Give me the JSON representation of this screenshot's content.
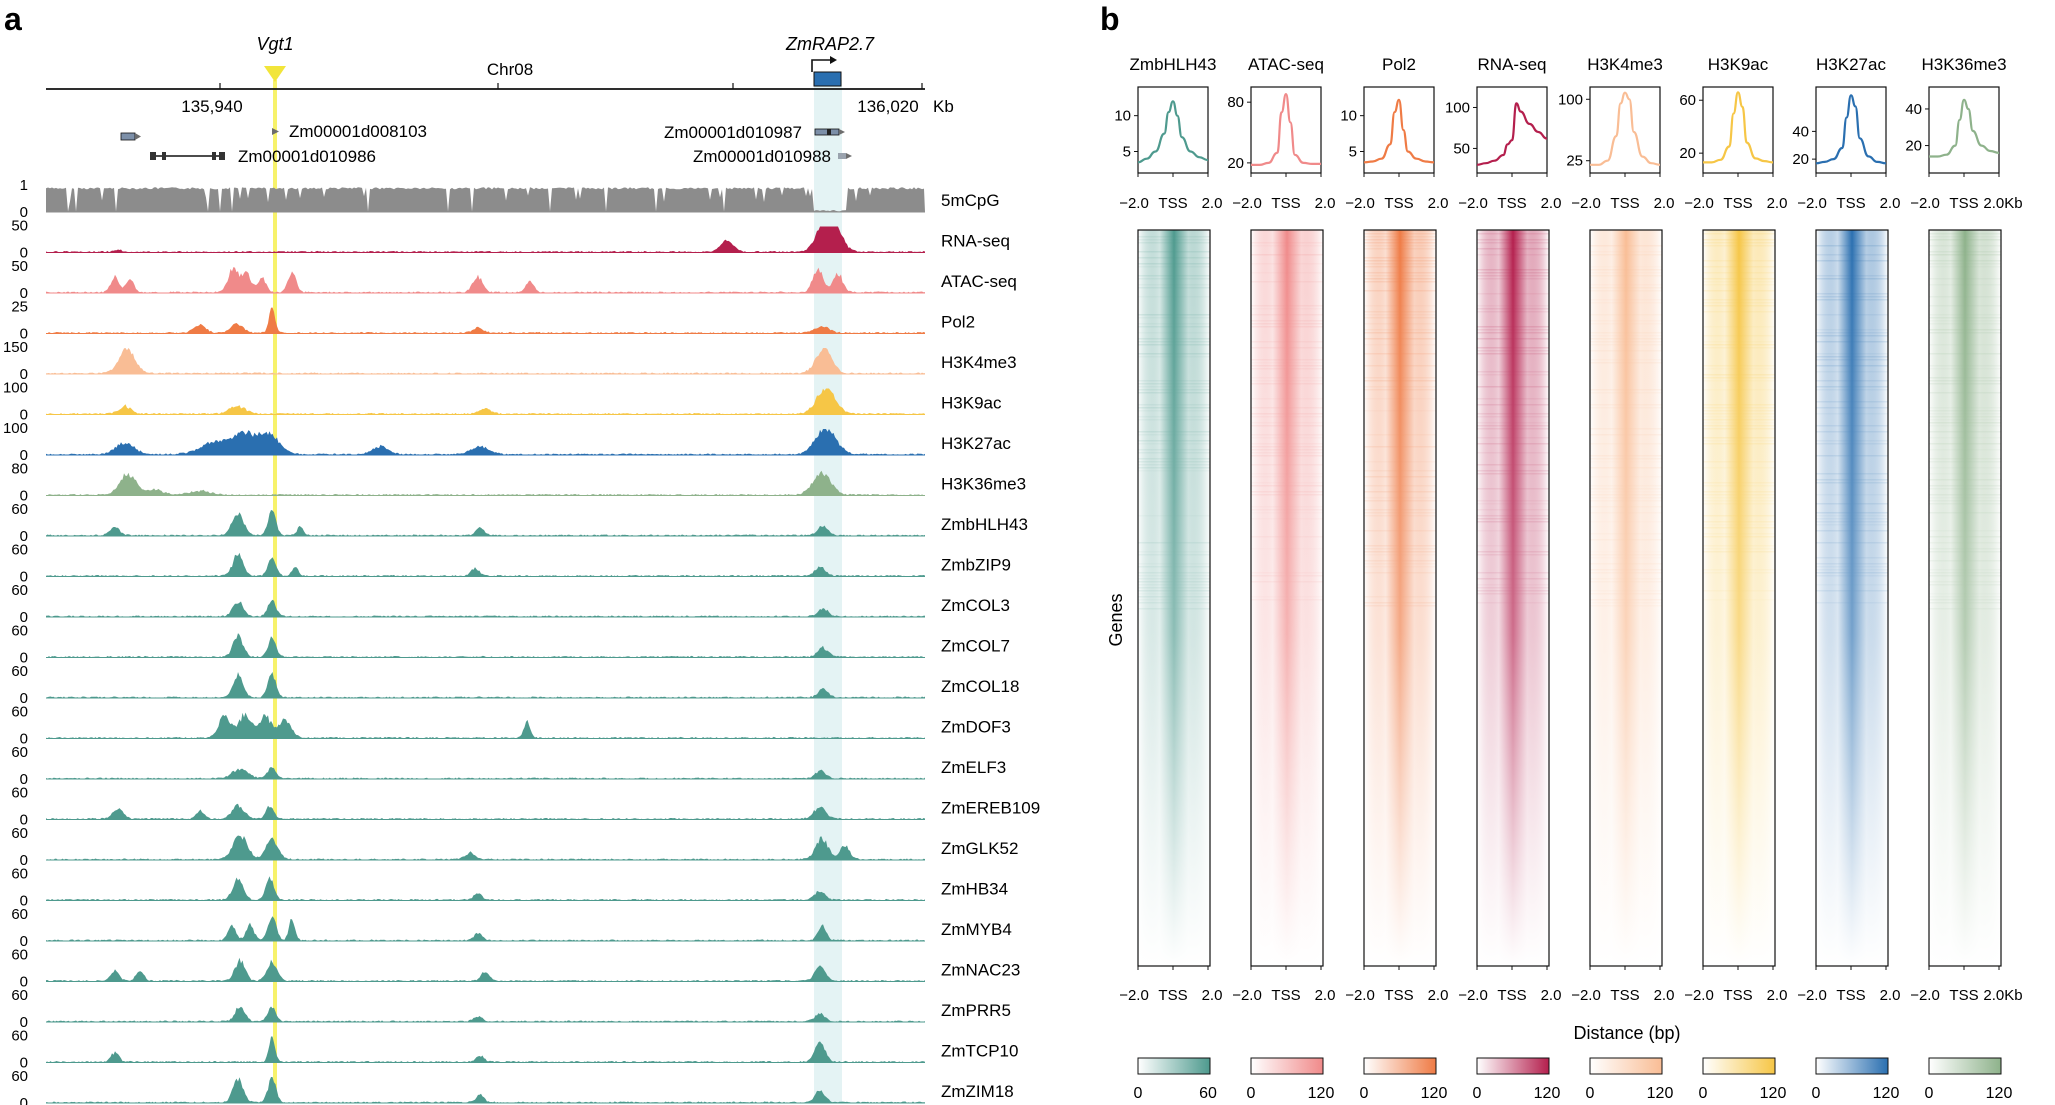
{
  "panel_a": {
    "letter": "a",
    "locus": {
      "chromosome": "Chr08",
      "start_label": "135,940",
      "end_label": "136,020",
      "unit": "Kb",
      "start": 135940,
      "end": 136020
    },
    "highlight_genes": [
      "Vgt1",
      "ZmRAP2.7"
    ],
    "gene_models": [
      "Zm00001d008103",
      "Zm00001d010986",
      "Zm00001d010987",
      "Zm00001d010988"
    ],
    "tracks": [
      {
        "name": "5mCpG",
        "max": "1",
        "min": "0",
        "color": "#8c8c8c"
      },
      {
        "name": "RNA-seq",
        "max": "50",
        "min": "0",
        "color": "#b41f4d"
      },
      {
        "name": "ATAC-seq",
        "max": "50",
        "min": "0",
        "color": "#f08a8a"
      },
      {
        "name": "Pol2",
        "max": "25",
        "min": "0",
        "color": "#ef7b45"
      },
      {
        "name": "H3K4me3",
        "max": "150",
        "min": "0",
        "color": "#f9bd95"
      },
      {
        "name": "H3K9ac",
        "max": "100",
        "min": "0",
        "color": "#f6c646"
      },
      {
        "name": "H3K27ac",
        "max": "100",
        "min": "0",
        "color": "#2a6fb0"
      },
      {
        "name": "H3K36me3",
        "max": "80",
        "min": "0",
        "color": "#8eb28b"
      },
      {
        "name": "ZmbHLH43",
        "max": "60",
        "min": "0",
        "color": "#4e9a8e"
      },
      {
        "name": "ZmbZIP9",
        "max": "60",
        "min": "0",
        "color": "#4e9a8e"
      },
      {
        "name": "ZmCOL3",
        "max": "60",
        "min": "0",
        "color": "#4e9a8e"
      },
      {
        "name": "ZmCOL7",
        "max": "60",
        "min": "0",
        "color": "#4e9a8e"
      },
      {
        "name": "ZmCOL18",
        "max": "60",
        "min": "0",
        "color": "#4e9a8e"
      },
      {
        "name": "ZmDOF3",
        "max": "60",
        "min": "0",
        "color": "#4e9a8e"
      },
      {
        "name": "ZmELF3",
        "max": "60",
        "min": "0",
        "color": "#4e9a8e"
      },
      {
        "name": "ZmEREB109",
        "max": "60",
        "min": "0",
        "color": "#4e9a8e"
      },
      {
        "name": "ZmGLK52",
        "max": "60",
        "min": "0",
        "color": "#4e9a8e"
      },
      {
        "name": "ZmHB34",
        "max": "60",
        "min": "0",
        "color": "#4e9a8e"
      },
      {
        "name": "ZmMYB4",
        "max": "60",
        "min": "0",
        "color": "#4e9a8e"
      },
      {
        "name": "ZmNAC23",
        "max": "60",
        "min": "0",
        "color": "#4e9a8e"
      },
      {
        "name": "ZmPRR5",
        "max": "60",
        "min": "0",
        "color": "#4e9a8e"
      },
      {
        "name": "ZmTCP10",
        "max": "60",
        "min": "0",
        "color": "#4e9a8e"
      },
      {
        "name": "ZmZIM18",
        "max": "60",
        "min": "0",
        "color": "#4e9a8e"
      }
    ],
    "highlight_colors": {
      "vgt1": "#f7f26b",
      "rap27": "#dff1f2"
    }
  },
  "panel_b": {
    "letter": "b",
    "xlabel": "Distance (bp)",
    "ylabel": "Genes",
    "x_ticks": [
      "−2.0",
      "TSS",
      "2.0"
    ],
    "x_ticks_last": [
      "−2.0",
      "TSS",
      "2.0Kb"
    ]
  },
  "chart_data": {
    "type": "line",
    "title": "",
    "xlabel": "Distance (bp)",
    "ylabel": "Genes",
    "x": [
      -2.0,
      -1.5,
      -1.0,
      -0.5,
      -0.25,
      0,
      0.25,
      0.5,
      1.0,
      1.5,
      2.0
    ],
    "series": [
      {
        "name": "ZmbHLH43",
        "color": "#4e9a8e",
        "yticks": [
          "10",
          "5"
        ],
        "ylim": [
          2,
          14
        ],
        "values": [
          3.5,
          4,
          5,
          7.5,
          10.5,
          12,
          10,
          7,
          5,
          4.2,
          3.8
        ],
        "colorbar": [
          "0",
          "60"
        ]
      },
      {
        "name": "ATAC-seq",
        "color": "#f08a8a",
        "yticks": [
          "80",
          "20"
        ],
        "ylim": [
          10,
          95
        ],
        "values": [
          18,
          18,
          20,
          30,
          70,
          88,
          60,
          28,
          20,
          19,
          19
        ],
        "colorbar": [
          "0",
          "120"
        ]
      },
      {
        "name": "Pol2",
        "color": "#ef7b45",
        "yticks": [
          "10",
          "5"
        ],
        "ylim": [
          2,
          14
        ],
        "values": [
          3.5,
          3.6,
          4,
          6,
          10.5,
          12.2,
          8,
          5,
          4,
          3.6,
          3.5
        ],
        "colorbar": [
          "0",
          "120"
        ]
      },
      {
        "name": "RNA-seq",
        "color": "#b41f4d",
        "yticks": [
          "100",
          "50"
        ],
        "ylim": [
          20,
          125
        ],
        "values": [
          30,
          32,
          35,
          42,
          55,
          60,
          105,
          95,
          80,
          70,
          62
        ],
        "colorbar": [
          "0",
          "120"
        ]
      },
      {
        "name": "H3K4me3",
        "color": "#f9bd95",
        "yticks": [
          "100",
          "25"
        ],
        "ylim": [
          10,
          115
        ],
        "values": [
          20,
          20,
          25,
          55,
          95,
          108,
          100,
          60,
          30,
          22,
          20
        ],
        "colorbar": [
          "0",
          "120"
        ]
      },
      {
        "name": "H3K9ac",
        "color": "#f6c646",
        "yticks": [
          "60",
          "20"
        ],
        "ylim": [
          5,
          70
        ],
        "values": [
          13,
          13,
          15,
          25,
          50,
          66,
          55,
          28,
          16,
          14,
          13
        ],
        "colorbar": [
          "0",
          "120"
        ]
      },
      {
        "name": "H3K27ac",
        "color": "#2a6fb0",
        "yticks": [
          "40",
          "20"
        ],
        "ylim": [
          10,
          72
        ],
        "values": [
          17,
          18,
          20,
          28,
          50,
          66,
          58,
          35,
          22,
          18,
          17
        ],
        "colorbar": [
          "0",
          "120"
        ]
      },
      {
        "name": "H3K36me3",
        "color": "#8eb28b",
        "yticks": [
          "40",
          "20"
        ],
        "ylim": [
          5,
          52
        ],
        "values": [
          14,
          14,
          15,
          20,
          34,
          45,
          40,
          28,
          20,
          17,
          16
        ],
        "colorbar": [
          "0",
          "120"
        ]
      }
    ]
  }
}
